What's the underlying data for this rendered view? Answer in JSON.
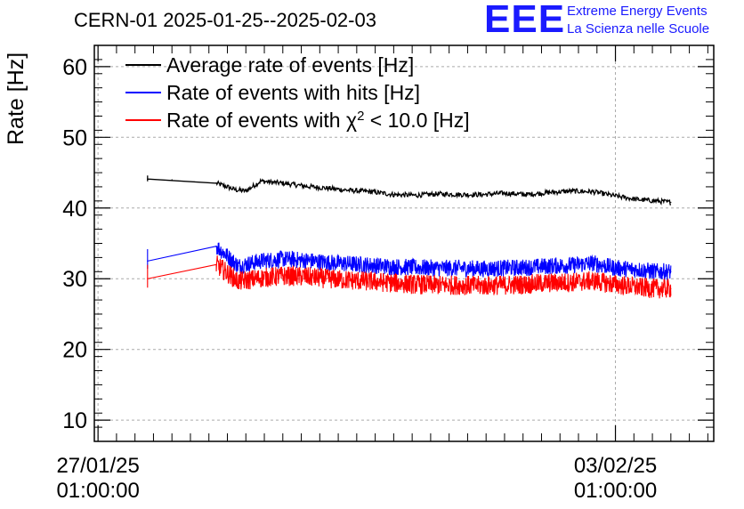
{
  "header": {
    "title": "CERN-01 2025-01-25--2025-02-03",
    "logo_text": "EEE",
    "logo_line1": "Extreme Energy Events",
    "logo_line2": "La Scienza nelle Scuole"
  },
  "colors": {
    "average": "#000000",
    "hits": "#0000ff",
    "chi2": "#ff0000",
    "grid": "#aaaaaa",
    "logo": "#1a1aff"
  },
  "chart_data": {
    "type": "line",
    "title": "CERN-01 2025-01-25--2025-02-03",
    "xlabel": "",
    "ylabel": "Rate [Hz]",
    "xlim": [
      -0.05,
      8.33
    ],
    "ylim": [
      7,
      63
    ],
    "yticks": [
      10,
      20,
      30,
      40,
      50,
      60
    ],
    "xticks": [
      {
        "x": 0,
        "line1": "27/01/25",
        "line2": "01:00:00"
      },
      {
        "x": 7,
        "line1": "03/02/25",
        "line2": "01:00:00"
      }
    ],
    "x_unit": "days since 27/01/25 01:00:00",
    "grid": true,
    "legend_position": "top-left",
    "series": [
      {
        "name": "Average rate of events [Hz]",
        "legend_main": "Average rate of events [Hz]",
        "color": "#000000",
        "x": [
          0.67,
          1.0,
          1.3,
          1.6,
          1.75,
          1.85,
          2.0,
          2.2,
          2.5,
          2.8,
          3.1,
          3.4,
          3.7,
          4.0,
          4.3,
          4.6,
          4.9,
          5.2,
          5.5,
          5.8,
          6.1,
          6.4,
          6.7,
          7.0,
          7.3,
          7.55,
          7.75
        ],
        "values": [
          44.1,
          44.0,
          43.7,
          43.5,
          43.0,
          42.6,
          42.4,
          43.8,
          43.5,
          43.1,
          42.8,
          42.5,
          42.3,
          41.9,
          41.8,
          42.0,
          41.9,
          41.9,
          42.1,
          41.9,
          42.2,
          42.4,
          42.3,
          41.7,
          41.2,
          41.0,
          40.8
        ],
        "noise": 0.35
      },
      {
        "name": "Rate of events with hits [Hz]",
        "legend_main": "Rate of events with hits [Hz]",
        "color": "#0000ff",
        "x": [
          0.67,
          1.6,
          1.9,
          2.2,
          2.5,
          2.8,
          3.1,
          3.4,
          3.7,
          4.0,
          4.3,
          4.6,
          4.9,
          5.2,
          5.5,
          5.8,
          6.1,
          6.4,
          6.7,
          7.0,
          7.3,
          7.55,
          7.75
        ],
        "values": [
          32.5,
          34.6,
          31.8,
          32.5,
          32.8,
          32.6,
          32.3,
          32.1,
          31.9,
          31.7,
          31.6,
          31.5,
          31.5,
          31.4,
          31.5,
          31.6,
          31.8,
          31.9,
          32.2,
          31.5,
          31.3,
          31.0,
          31.0
        ],
        "noise": 1.2
      },
      {
        "name": "Rate of events with chi2 < 10.0 [Hz]",
        "legend_main": "Rate of events with χ",
        "legend_sup": "2",
        "legend_tail": " < 10.0 [Hz]",
        "color": "#ff0000",
        "x": [
          0.67,
          1.6,
          1.9,
          2.2,
          2.5,
          2.8,
          3.1,
          3.4,
          3.7,
          4.0,
          4.3,
          4.6,
          4.9,
          5.2,
          5.5,
          5.8,
          6.1,
          6.4,
          6.7,
          7.0,
          7.3,
          7.55,
          7.75
        ],
        "values": [
          30.0,
          32.0,
          29.6,
          30.1,
          30.4,
          30.3,
          30.0,
          29.8,
          29.6,
          29.4,
          29.2,
          29.1,
          29.1,
          29.0,
          29.1,
          29.2,
          29.4,
          29.5,
          29.7,
          29.2,
          28.8,
          28.6,
          28.6
        ],
        "noise": 1.4
      }
    ]
  }
}
